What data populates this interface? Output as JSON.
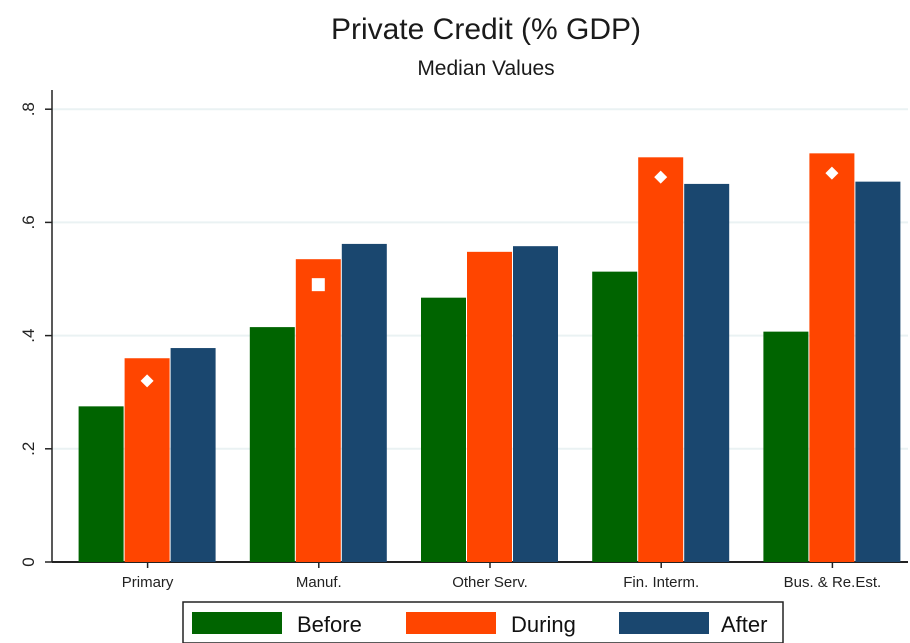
{
  "chart_data": {
    "type": "bar",
    "title": "Private Credit (% GDP)",
    "subtitle": "Median Values",
    "categories": [
      "Primary",
      "Manuf.",
      "Other Serv.",
      "Fin. Interm.",
      "Bus. & Re.Est."
    ],
    "series": [
      {
        "name": "Before",
        "values": [
          0.275,
          0.415,
          0.467,
          0.513,
          0.407
        ]
      },
      {
        "name": "During",
        "values": [
          0.36,
          0.535,
          0.548,
          0.715,
          0.722
        ]
      },
      {
        "name": "After",
        "values": [
          0.378,
          0.562,
          0.558,
          0.668,
          0.672
        ]
      }
    ],
    "markers": [
      {
        "category": "Primary",
        "value": 0.32,
        "shape": "diamond"
      },
      {
        "category": "Manuf.",
        "value": 0.49,
        "shape": "square"
      },
      {
        "category": "Fin. Interm.",
        "value": 0.68,
        "shape": "diamond"
      },
      {
        "category": "Bus. & Re.Est.",
        "value": 0.687,
        "shape": "diamond"
      }
    ],
    "yticks": [
      0,
      0.2,
      0.4,
      0.6,
      0.8
    ],
    "ytick_labels": [
      "0",
      ".2",
      ".4",
      ".6",
      ".8"
    ],
    "ylim": [
      0,
      0.85
    ],
    "grid": true,
    "legend_position": "bottom",
    "colors": {
      "Before": "#006400",
      "During": "#ff4500",
      "After": "#1a476f",
      "grid": "#eaf2f3",
      "marker": "#ffffff"
    }
  }
}
